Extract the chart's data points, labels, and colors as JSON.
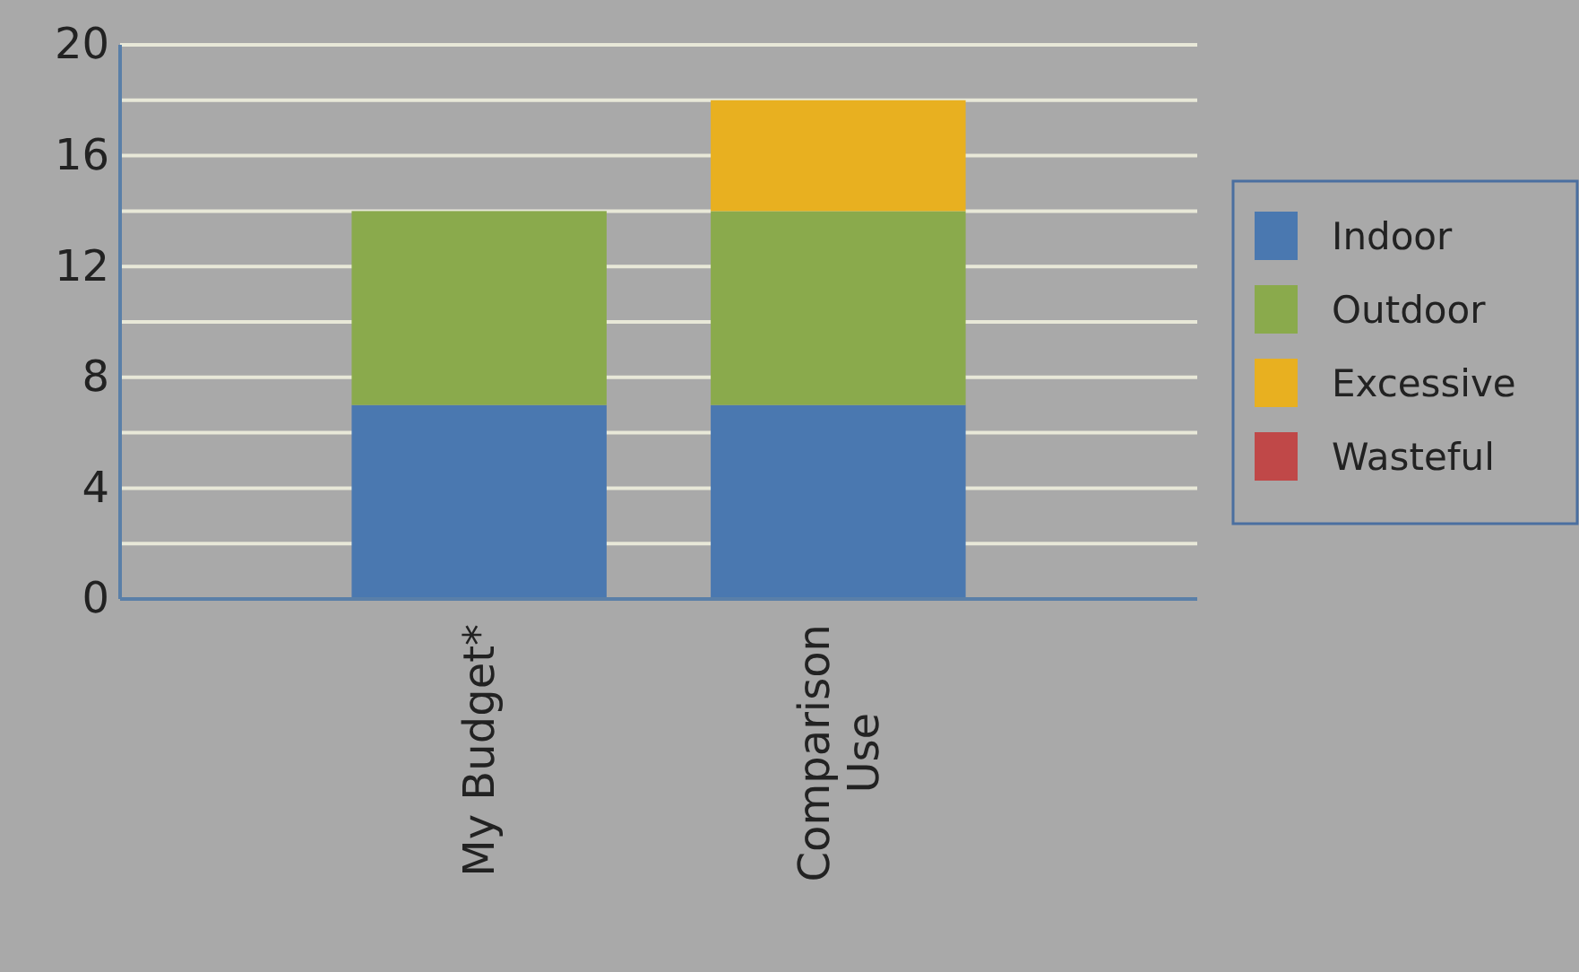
{
  "chart_data": {
    "type": "bar",
    "stacked": true,
    "categories": [
      "My Budget*",
      "Comparison Use"
    ],
    "series": [
      {
        "name": "Indoor",
        "color": "#4a78b0",
        "values": [
          7,
          7
        ]
      },
      {
        "name": "Outdoor",
        "color": "#8aaa4c",
        "values": [
          7,
          7
        ]
      },
      {
        "name": "Excessive",
        "color": "#e8b020",
        "values": [
          0,
          4
        ]
      },
      {
        "name": "Wasteful",
        "color": "#c04848",
        "values": [
          0,
          0
        ]
      }
    ],
    "ylim": [
      0,
      20
    ],
    "yticks": [
      0,
      {
        "value": 2,
        "label": null
      },
      4,
      {
        "value": 6,
        "label": null
      },
      8,
      {
        "value": 10,
        "label": null
      },
      12,
      {
        "value": 14,
        "label": null
      },
      16,
      {
        "value": 18,
        "label": null
      },
      20
    ],
    "grid": "y",
    "legend": "right"
  }
}
